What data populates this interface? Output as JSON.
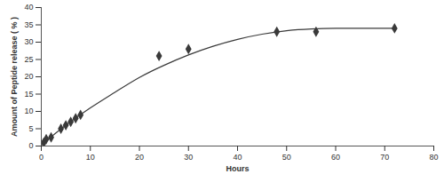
{
  "chart_data": {
    "type": "scatter",
    "x_label": "Hours",
    "y_label": "Amount of Peptide release ( % )",
    "xlim": [
      0,
      80
    ],
    "xticks": [
      0,
      10,
      20,
      30,
      40,
      50,
      60,
      70,
      80
    ],
    "ylim": [
      0,
      40
    ],
    "yticks": [
      0,
      5,
      10,
      15,
      20,
      25,
      30,
      35,
      40
    ],
    "grid": false,
    "series": [
      {
        "type": "scatter",
        "marker": "diamond",
        "color": "#3a3a3a",
        "x": [
          0.5,
          1,
          2,
          4,
          5,
          6,
          7,
          8,
          24,
          30,
          48,
          56,
          72
        ],
        "values": [
          1,
          2,
          2.5,
          5,
          6,
          7,
          8,
          9,
          26,
          28,
          33,
          33,
          34
        ]
      },
      {
        "type": "line",
        "line_style": "solid",
        "color": "#3a3a3a",
        "x": [
          0,
          5,
          10,
          15,
          20,
          25,
          30,
          35,
          40,
          45,
          50,
          55,
          60,
          65,
          72
        ],
        "values": [
          0.3,
          6,
          11,
          15.5,
          19.8,
          23.3,
          26.3,
          28.8,
          30.8,
          32.3,
          33.3,
          33.8,
          34,
          34,
          34
        ]
      }
    ]
  }
}
